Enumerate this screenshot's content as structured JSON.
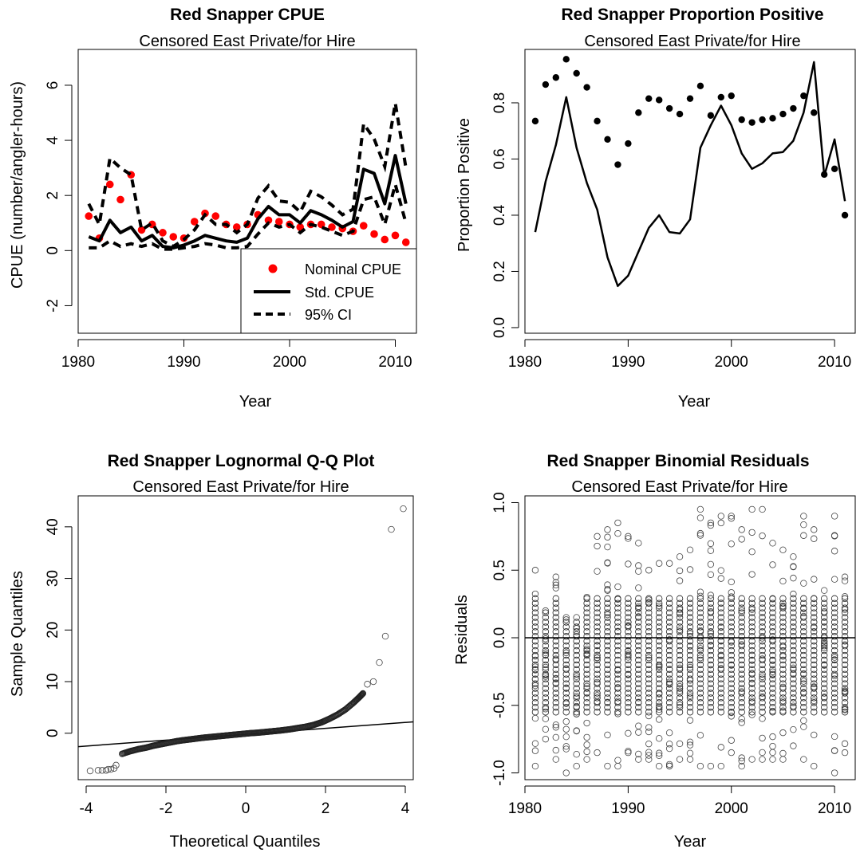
{
  "chart_data": [
    {
      "type": "line",
      "title": "Red Snapper CPUE",
      "subtitle": "Censored East Private/for Hire",
      "xlabel": "Year",
      "ylabel": "CPUE (number/angler-hours)",
      "xlim": [
        1980,
        2012
      ],
      "ylim": [
        -3,
        7.3
      ],
      "xticks": [
        1980,
        1990,
        2000,
        2010
      ],
      "yticks": [
        -2,
        0,
        2,
        4,
        6
      ],
      "x": [
        1981,
        1982,
        1983,
        1984,
        1985,
        1986,
        1987,
        1988,
        1989,
        1990,
        1991,
        1992,
        1993,
        1994,
        1995,
        1996,
        1997,
        1998,
        1999,
        2000,
        2001,
        2002,
        2003,
        2004,
        2005,
        2006,
        2007,
        2008,
        2009,
        2010,
        2011
      ],
      "series": [
        {
          "name": "Nominal CPUE",
          "kind": "points",
          "color": "#ff0000",
          "values": [
            1.25,
            0.45,
            2.4,
            1.85,
            2.75,
            0.75,
            0.95,
            0.65,
            0.5,
            0.45,
            1.05,
            1.35,
            1.25,
            0.95,
            0.85,
            0.95,
            1.3,
            1.1,
            1.05,
            0.95,
            0.85,
            0.95,
            0.95,
            0.85,
            0.8,
            0.7,
            0.9,
            0.6,
            0.4,
            0.55,
            0.3
          ]
        },
        {
          "name": "Std. CPUE",
          "kind": "line",
          "color": "#000000",
          "values": [
            0.5,
            0.35,
            1.1,
            0.65,
            0.85,
            0.35,
            0.55,
            0.15,
            0.1,
            0.2,
            0.35,
            0.55,
            0.45,
            0.35,
            0.3,
            0.45,
            1.15,
            1.6,
            1.3,
            1.3,
            1.0,
            1.45,
            1.3,
            1.1,
            0.85,
            1.05,
            2.95,
            2.8,
            1.7,
            3.45,
            1.7
          ]
        },
        {
          "name": "95% CI",
          "kind": "dashed",
          "color": "#000000",
          "values": [
            1.7,
            0.95,
            3.35,
            3.0,
            2.75,
            0.75,
            1.0,
            0.35,
            0.15,
            0.4,
            0.75,
            1.3,
            0.95,
            0.95,
            0.65,
            0.95,
            1.9,
            2.35,
            1.8,
            1.75,
            1.4,
            2.15,
            1.95,
            1.65,
            1.3,
            1.5,
            4.6,
            4.05,
            3.05,
            5.35,
            3.0
          ]
        },
        {
          "name": "",
          "kind": "dashed",
          "color": "#000000",
          "values": [
            0.1,
            0.1,
            0.35,
            0.15,
            0.25,
            0.15,
            0.25,
            0.05,
            0.05,
            0.1,
            0.15,
            0.25,
            0.2,
            0.1,
            0.1,
            0.15,
            0.6,
            1.0,
            0.85,
            0.95,
            0.65,
            0.95,
            0.85,
            0.7,
            0.55,
            0.7,
            1.85,
            1.95,
            0.95,
            2.4,
            1.0
          ]
        }
      ],
      "legend": {
        "position": "bottom-right",
        "items": [
          "Nominal CPUE",
          "Std. CPUE",
          "95% CI"
        ]
      }
    },
    {
      "type": "line",
      "title": "Red Snapper Proportion Positive",
      "subtitle": "Censored East Private/for Hire",
      "xlabel": "Year",
      "ylabel": "Proportion Positive",
      "xlim": [
        1980,
        2012
      ],
      "ylim": [
        -0.02,
        0.99
      ],
      "xticks": [
        1980,
        1990,
        2000,
        2010
      ],
      "yticks": [
        0.0,
        0.2,
        0.4,
        0.6,
        0.8
      ],
      "ytick_labels": [
        "0.0",
        "0.2",
        "0.4",
        "0.6",
        "0.8"
      ],
      "x": [
        1981,
        1982,
        1983,
        1984,
        1985,
        1986,
        1987,
        1988,
        1989,
        1990,
        1991,
        1992,
        1993,
        1994,
        1995,
        1996,
        1997,
        1998,
        1999,
        2000,
        2001,
        2002,
        2003,
        2004,
        2005,
        2006,
        2007,
        2008,
        2009,
        2010,
        2011
      ],
      "series": [
        {
          "name": "",
          "kind": "points",
          "color": "#000000",
          "values": [
            0.735,
            0.865,
            0.89,
            0.955,
            0.905,
            0.855,
            0.735,
            0.67,
            0.58,
            0.655,
            0.765,
            0.815,
            0.81,
            0.78,
            0.76,
            0.815,
            0.86,
            0.755,
            0.82,
            0.825,
            0.74,
            0.73,
            0.74,
            0.745,
            0.76,
            0.78,
            0.825,
            0.765,
            0.545,
            0.565,
            0.4
          ]
        },
        {
          "name": "",
          "kind": "line",
          "color": "#000000",
          "values": [
            0.34,
            0.52,
            0.65,
            0.82,
            0.64,
            0.515,
            0.42,
            0.25,
            0.148,
            0.185,
            0.27,
            0.355,
            0.4,
            0.34,
            0.335,
            0.385,
            0.64,
            0.72,
            0.79,
            0.72,
            0.62,
            0.565,
            0.585,
            0.62,
            0.625,
            0.665,
            0.765,
            0.945,
            0.54,
            0.67,
            0.45
          ]
        }
      ]
    },
    {
      "type": "scatter",
      "title": "Red Snapper Lognormal Q-Q Plot",
      "subtitle": "Censored East Private/for Hire",
      "xlabel": "Theoretical Quantiles",
      "ylabel": "Sample Quantiles",
      "xlim": [
        -4.2,
        4.2
      ],
      "ylim": [
        -9,
        46
      ],
      "xticks": [
        -4,
        -2,
        0,
        2,
        4
      ],
      "yticks": [
        0,
        10,
        20,
        30,
        40
      ],
      "reference_line": {
        "x": [
          -4.2,
          4.2
        ],
        "y": [
          -2.6,
          2.2
        ]
      },
      "outlier_points": [
        [
          -3.9,
          -7.3
        ],
        [
          -3.7,
          -7.2
        ],
        [
          -3.6,
          -7.2
        ],
        [
          -3.5,
          -7.2
        ],
        [
          -3.45,
          -7.0
        ],
        [
          -3.38,
          -7.0
        ],
        [
          -3.3,
          -6.8
        ],
        [
          -3.25,
          -6.2
        ],
        [
          3.05,
          9.5
        ],
        [
          3.2,
          10.0
        ],
        [
          3.35,
          13.7
        ],
        [
          3.5,
          18.8
        ],
        [
          3.65,
          39.5
        ],
        [
          3.95,
          43.5
        ]
      ],
      "curve_points": [
        [
          -3.1,
          -4.0
        ],
        [
          -2.9,
          -3.5
        ],
        [
          -2.7,
          -3.1
        ],
        [
          -2.5,
          -2.8
        ],
        [
          -2.3,
          -2.4
        ],
        [
          -2.1,
          -2.1
        ],
        [
          -1.9,
          -1.8
        ],
        [
          -1.7,
          -1.5
        ],
        [
          -1.5,
          -1.3
        ],
        [
          -1.3,
          -1.1
        ],
        [
          -1.1,
          -0.9
        ],
        [
          -0.9,
          -0.75
        ],
        [
          -0.7,
          -0.6
        ],
        [
          -0.5,
          -0.45
        ],
        [
          -0.3,
          -0.3
        ],
        [
          -0.1,
          -0.15
        ],
        [
          0.1,
          0.0
        ],
        [
          0.3,
          0.1
        ],
        [
          0.5,
          0.25
        ],
        [
          0.7,
          0.4
        ],
        [
          0.9,
          0.55
        ],
        [
          1.1,
          0.75
        ],
        [
          1.3,
          1.0
        ],
        [
          1.5,
          1.25
        ],
        [
          1.7,
          1.6
        ],
        [
          1.9,
          2.1
        ],
        [
          2.1,
          2.8
        ],
        [
          2.3,
          3.6
        ],
        [
          2.5,
          4.6
        ],
        [
          2.7,
          5.9
        ],
        [
          2.85,
          7.0
        ],
        [
          2.95,
          7.8
        ]
      ]
    },
    {
      "type": "scatter",
      "title": "Red Snapper Binomial Residuals",
      "subtitle": "Censored East Private/for Hire",
      "xlabel": "Year",
      "ylabel": "Residuals",
      "xlim": [
        1980,
        2012
      ],
      "ylim": [
        -1.05,
        1.05
      ],
      "xticks": [
        1980,
        1990,
        2000,
        2010
      ],
      "yticks": [
        -1.0,
        -0.5,
        0.0,
        0.5,
        1.0
      ],
      "ytick_labels": [
        "-1.0",
        "-0.5",
        "0.0",
        "0.5",
        "1.0"
      ],
      "hline": 0,
      "years": [
        1981,
        1982,
        1983,
        1984,
        1985,
        1986,
        1987,
        1988,
        1989,
        1990,
        1991,
        1992,
        1993,
        1994,
        1995,
        1996,
        1997,
        1998,
        1999,
        2000,
        2001,
        2002,
        2003,
        2004,
        2005,
        2006,
        2007,
        2008,
        2009,
        2010,
        2011
      ],
      "max_residual": [
        0.5,
        0.2,
        0.45,
        0.15,
        0.15,
        0.3,
        0.75,
        0.8,
        0.85,
        0.75,
        0.7,
        0.5,
        0.55,
        0.55,
        0.6,
        0.65,
        0.95,
        0.85,
        0.9,
        0.9,
        0.8,
        0.95,
        0.95,
        0.7,
        0.65,
        0.6,
        0.9,
        0.8,
        0.35,
        0.9,
        0.45
      ],
      "min_residual": [
        -0.95,
        -0.75,
        -0.9,
        -1.0,
        -0.95,
        -0.9,
        -0.85,
        -0.95,
        -0.95,
        -0.85,
        -0.9,
        -0.9,
        -0.95,
        -0.95,
        -0.9,
        -0.9,
        -0.95,
        -0.95,
        -0.95,
        -0.85,
        -0.95,
        -0.9,
        -0.9,
        -0.9,
        -0.9,
        -0.8,
        -0.9,
        -0.95,
        -0.55,
        -1.0,
        -0.85
      ]
    }
  ]
}
